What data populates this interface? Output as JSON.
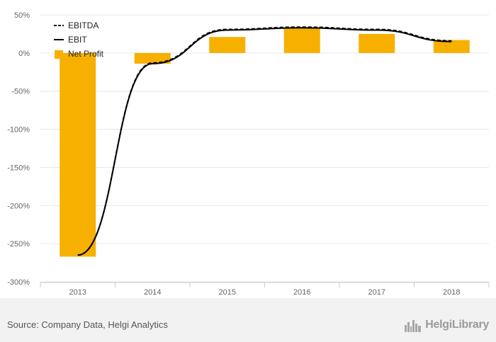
{
  "chart_data": {
    "type": "bar",
    "categories": [
      "2013",
      "2014",
      "2015",
      "2016",
      "2017",
      "2018"
    ],
    "series": [
      {
        "name": "EBITDA",
        "kind": "line",
        "style": "dashed",
        "values": [
          -265,
          -13,
          31,
          34,
          31,
          16
        ]
      },
      {
        "name": "EBIT",
        "kind": "line",
        "style": "solid",
        "values": [
          -265,
          -14,
          30,
          33,
          30,
          15
        ]
      },
      {
        "name": "Net Profit",
        "kind": "bar",
        "values": [
          -267,
          -14,
          21,
          33,
          25,
          17
        ]
      }
    ],
    "y_ticks": [
      "50%",
      "0%",
      "-50%",
      "-100%",
      "-150%",
      "-200%",
      "-250%",
      "-300%"
    ],
    "y_tick_values": [
      50,
      0,
      -50,
      -100,
      -150,
      -200,
      -250,
      -300
    ],
    "ylim": [
      -300,
      50
    ],
    "grid": true,
    "legend_position": "top-left",
    "colors": {
      "bar": "#f7b000",
      "line": "#000000",
      "grid": "#e6e6e6"
    }
  },
  "footer": {
    "source": "Source: Company Data, Helgi Analytics",
    "brand": "HelgiLibrary"
  }
}
